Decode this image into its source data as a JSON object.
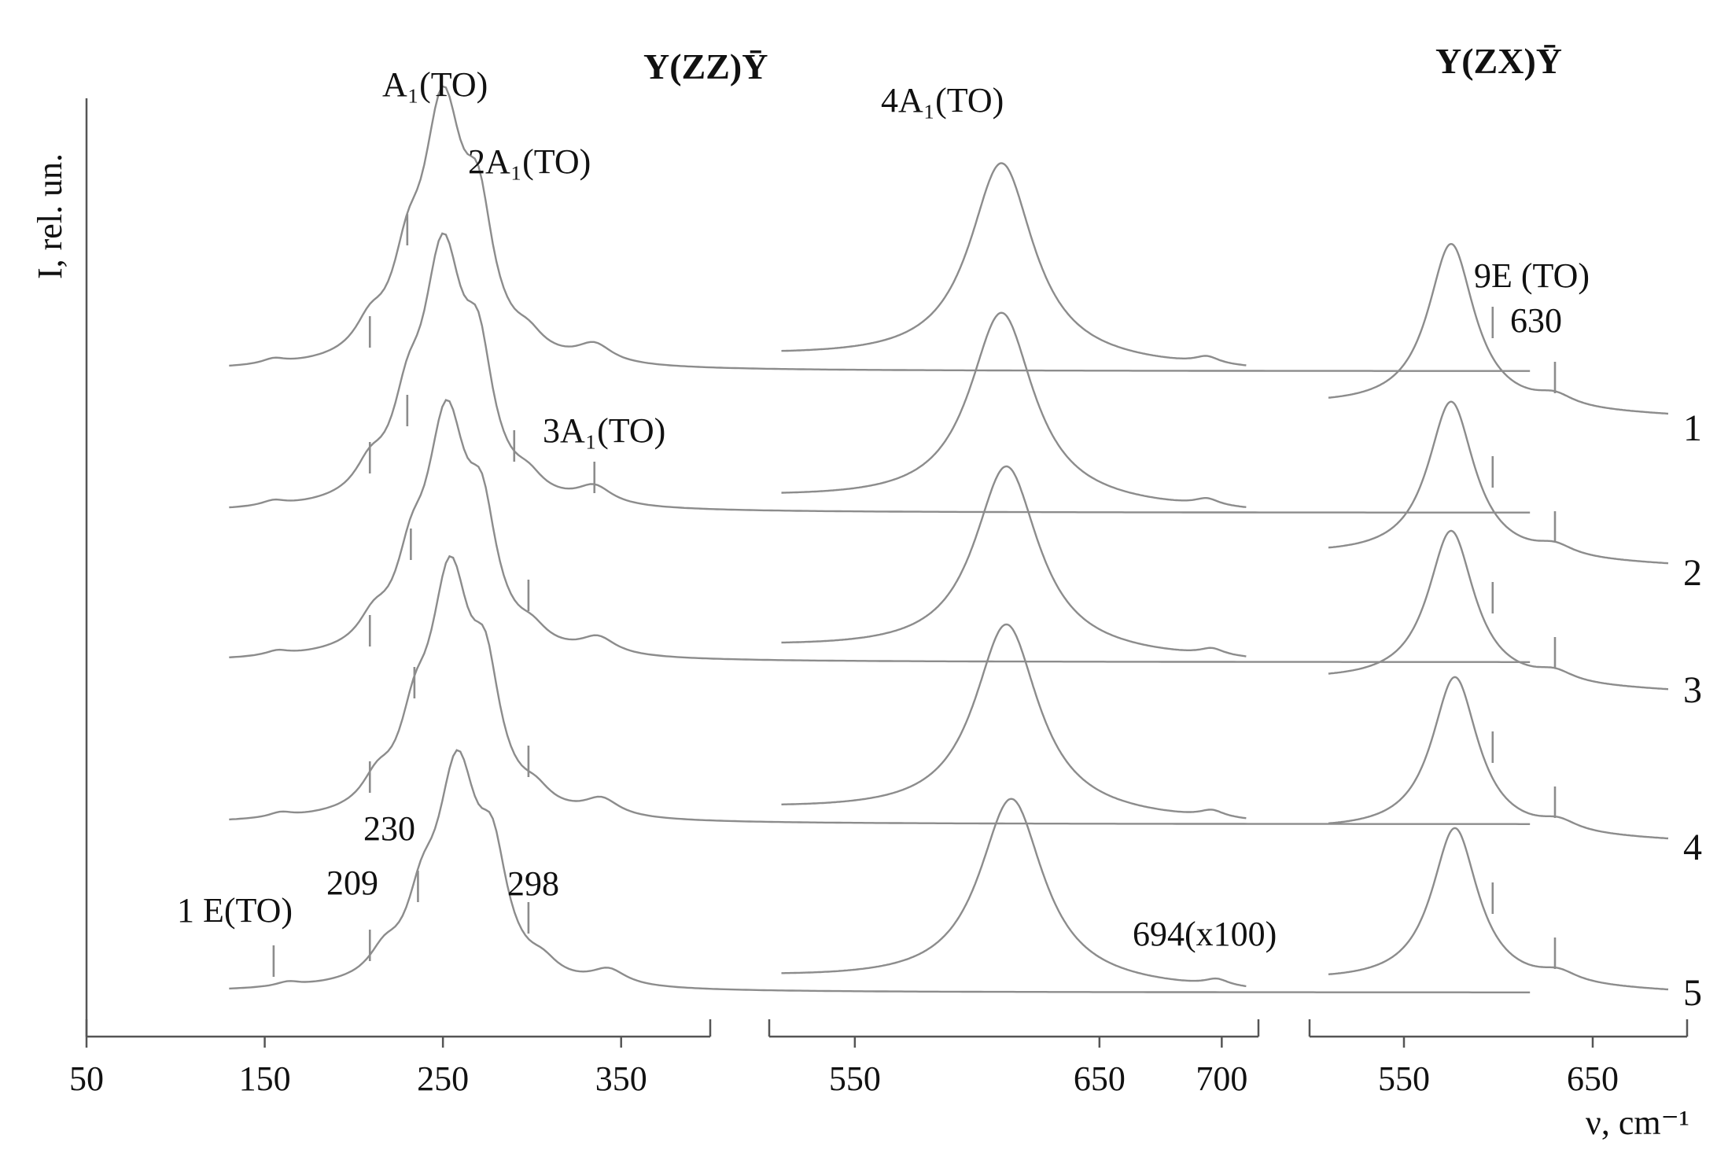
{
  "chart_data": {
    "type": "line",
    "title": "",
    "ylabel": "I, rel. un.",
    "xlabel": "ν, cm⁻¹",
    "grid": false,
    "curve_labels": [
      "1",
      "2",
      "3",
      "4",
      "5"
    ],
    "panels": [
      {
        "id": "zz_low",
        "polarization": "",
        "xlim": [
          50,
          400
        ],
        "x_ticks": [
          50,
          150,
          250,
          350
        ],
        "tick_labels": [
          "50",
          "150",
          "250",
          "350"
        ],
        "peaks": [
          {
            "x": 155,
            "h": 0.02,
            "w": 8
          },
          {
            "x": 209,
            "h": 0.1,
            "w": 10
          },
          {
            "x": 230,
            "h": 0.25,
            "w": 10
          },
          {
            "x": 250,
            "h": 0.95,
            "w": 14
          },
          {
            "x": 270,
            "h": 0.45,
            "w": 10
          },
          {
            "x": 298,
            "h": 0.06,
            "w": 10
          },
          {
            "x": 335,
            "h": 0.07,
            "w": 12
          }
        ],
        "series_shift": [
          0,
          0,
          2,
          4,
          8
        ],
        "series_scale": [
          1.0,
          0.98,
          0.92,
          0.94,
          0.85
        ],
        "annotations": [
          "A₁(TO)",
          "2A₁(TO)",
          "3A₁(TO)",
          "1 E(TO)",
          "209",
          "230",
          "298"
        ]
      },
      {
        "id": "zz_high",
        "polarization": "Y(ZZ)Ȳ",
        "xlim": [
          515,
          715
        ],
        "x_ticks": [
          550,
          650,
          700
        ],
        "tick_labels": [
          "550",
          "650",
          "700"
        ],
        "peaks": [
          {
            "x": 610,
            "h": 0.85,
            "w": 16
          },
          {
            "x": 694,
            "h": 0.03,
            "w": 6
          }
        ],
        "series_shift": [
          0,
          0,
          2,
          2,
          4
        ],
        "series_scale": [
          1.0,
          0.96,
          0.94,
          0.96,
          0.93
        ],
        "annotations": [
          "4A₁(TO)",
          "694(x100)"
        ]
      },
      {
        "id": "zx",
        "polarization": "Y(ZX)Ȳ",
        "xlim": [
          500,
          700
        ],
        "x_ticks": [
          550,
          650
        ],
        "tick_labels": [
          "550",
          "650"
        ],
        "peaks": [
          {
            "x": 575,
            "h": 0.78,
            "w": 15
          },
          {
            "x": 630,
            "h": 0.05,
            "w": 12
          }
        ],
        "series_shift": [
          0,
          0,
          0,
          2,
          2
        ],
        "series_scale": [
          1.0,
          0.95,
          0.93,
          0.95,
          0.95
        ],
        "annotations": [
          "9E (TO)",
          "630"
        ]
      }
    ]
  }
}
